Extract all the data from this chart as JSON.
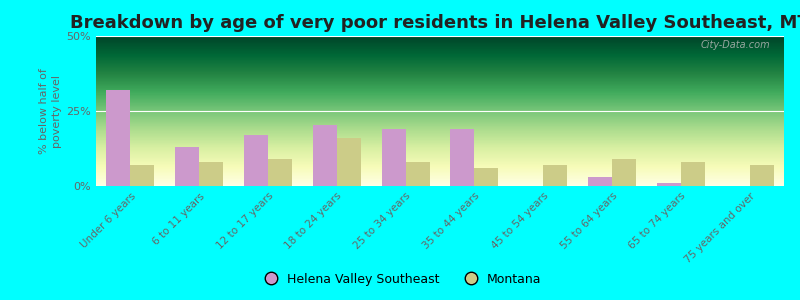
{
  "title": "Breakdown by age of very poor residents in Helena Valley Southeast, MT",
  "ylabel": "% below half of\npoverty level",
  "categories": [
    "Under 6 years",
    "6 to 11 years",
    "12 to 17 years",
    "18 to 24 years",
    "25 to 34 years",
    "35 to 44 years",
    "45 to 54 years",
    "55 to 64 years",
    "65 to 74 years",
    "75 years and over"
  ],
  "helena_values": [
    32.0,
    13.0,
    17.0,
    20.5,
    19.0,
    19.0,
    0.0,
    3.0,
    1.0,
    0.0
  ],
  "montana_values": [
    7.0,
    8.0,
    9.0,
    16.0,
    8.0,
    6.0,
    7.0,
    9.0,
    8.0,
    7.0
  ],
  "helena_color": "#cc99cc",
  "montana_color": "#cccc88",
  "plot_bg_top": "#f0f5ee",
  "plot_bg_bottom": "#f8f5e8",
  "outer_bg": "#00ffff",
  "ylim": [
    0,
    50
  ],
  "yticks": [
    0,
    25,
    50
  ],
  "ytick_labels": [
    "0%",
    "25%",
    "50%"
  ],
  "bar_width": 0.35,
  "title_fontsize": 13,
  "axis_label_fontsize": 8,
  "tick_label_fontsize": 7.5,
  "watermark": "City-Data.com",
  "legend_helena": "Helena Valley Southeast",
  "legend_montana": "Montana"
}
